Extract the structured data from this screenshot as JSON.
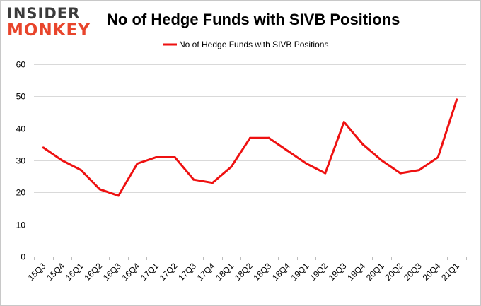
{
  "brand": {
    "line1": "INSIDER",
    "line2": "MONKEY"
  },
  "chart_data": {
    "type": "line",
    "title": "No of Hedge Funds with SIVB Positions",
    "categories": [
      "15Q3",
      "15Q4",
      "16Q1",
      "16Q2",
      "16Q3",
      "16Q4",
      "17Q1",
      "17Q2",
      "17Q3",
      "17Q4",
      "18Q1",
      "18Q2",
      "18Q3",
      "18Q4",
      "19Q1",
      "19Q2",
      "19Q3",
      "19Q4",
      "20Q1",
      "20Q2",
      "20Q3",
      "20Q4",
      "21Q1"
    ],
    "series": [
      {
        "name": "No of Hedge Funds with SIVB Positions",
        "color": "#ee1111",
        "values": [
          34,
          30,
          27,
          21,
          19,
          29,
          31,
          31,
          24,
          23,
          28,
          37,
          37,
          33,
          29,
          26,
          42,
          35,
          30,
          26,
          27,
          31,
          49
        ]
      }
    ],
    "ylim": [
      0,
      60
    ],
    "yticks": [
      0,
      10,
      20,
      30,
      40,
      50,
      60
    ],
    "grid": true,
    "legend": "top-center",
    "xlabel": "",
    "ylabel": ""
  }
}
